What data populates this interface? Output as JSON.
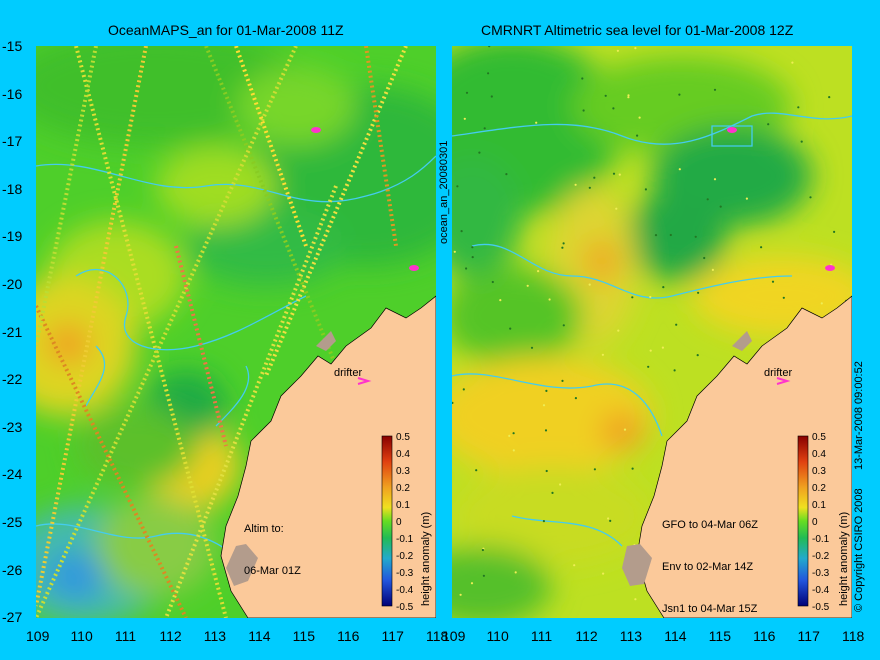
{
  "left_panel": {
    "title": "OceanMAPS_an for 01-Mar-2008 11Z",
    "annotation_lines": [
      "Altim to:",
      "06-Mar 01Z"
    ],
    "drifter_label": "drifter",
    "colorbar_label": "height anomaly (m)"
  },
  "right_panel": {
    "title": "CMRNRT Altimetric sea level  for 01-Mar-2008 12Z",
    "annotation_lines": [
      "GFO to 04-Mar 06Z",
      "Env to 02-Mar 14Z",
      "Jsn1 to 04-Mar 15Z"
    ],
    "drifter_label": "drifter",
    "colorbar_label": "height anomaly (m)"
  },
  "side_label_left": "ocean_an_20080301",
  "side_label_right": "13-Mar-2008 09:00:52",
  "copyright": "© Copyright CSIRO 2008",
  "y_ticks": [
    "-15",
    "-16",
    "-17",
    "-18",
    "-19",
    "-20",
    "-21",
    "-22",
    "-23",
    "-24",
    "-25",
    "-26",
    "-27"
  ],
  "x_ticks_left": [
    "109",
    "110",
    "111",
    "112",
    "113",
    "114",
    "115",
    "116",
    "117",
    "118"
  ],
  "x_ticks_right": [
    "109",
    "110",
    "111",
    "112",
    "113",
    "114",
    "115",
    "116",
    "117",
    "118"
  ],
  "colorbar_ticks": [
    "0.5",
    "0.4",
    "0.3",
    "0.2",
    "0.1",
    "0",
    "-0.1",
    "-0.2",
    "-0.3",
    "-0.4",
    "-0.5"
  ],
  "colors": {
    "background": "#00ccff",
    "land": "#fbc99a",
    "ocean_mid": "#66dd22",
    "ocean_high": "#eedd22",
    "ocean_low": "#22bb44",
    "drifter": "#ff33cc",
    "isobath": "#44ccee"
  }
}
